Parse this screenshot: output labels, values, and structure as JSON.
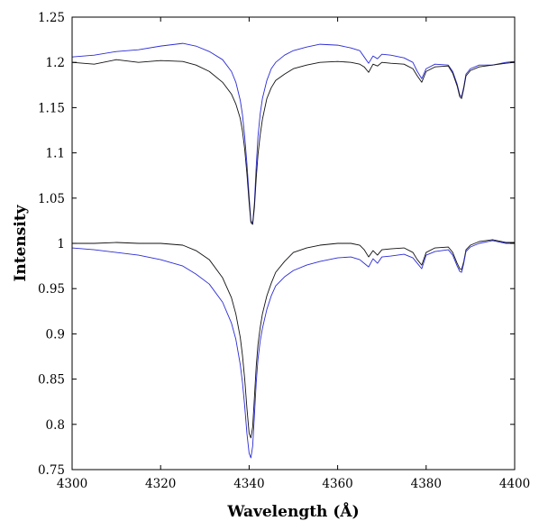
{
  "chart_data": {
    "type": "line",
    "title": "",
    "xlabel": "Wavelength (Å)",
    "ylabel": "Intensity",
    "xlim": [
      4300,
      4400
    ],
    "ylim": [
      0.75,
      1.25
    ],
    "x_ticks": [
      4300,
      4320,
      4340,
      4360,
      4380,
      4400
    ],
    "x_tick_labels": [
      "4300",
      "4320",
      "4340",
      "4360",
      "4380",
      "4400"
    ],
    "y_ticks": [
      0.75,
      0.8,
      0.85,
      0.9,
      0.95,
      1,
      1.05,
      1.1,
      1.15,
      1.2,
      1.25
    ],
    "y_tick_labels": [
      "0.75",
      "0.8",
      "0.85",
      "0.9",
      "0.95",
      "1",
      "1.05",
      "1.1",
      "1.15",
      "1.2",
      "1.25"
    ],
    "grid": false,
    "legend": "none",
    "series": [
      {
        "color": "#2b2bd6",
        "x": [
          4300,
          4305,
          4310,
          4315,
          4320,
          4325,
          4328,
          4331,
          4334,
          4336,
          4337,
          4338,
          4338.5,
          4339,
          4339.5,
          4340,
          4340.4,
          4340.8,
          4341.2,
          4341.6,
          4342,
          4342.5,
          4343,
          4344,
          4345,
          4346,
          4348,
          4350,
          4353,
          4356,
          4360,
          4363,
          4365,
          4366,
          4367,
          4368,
          4369,
          4370,
          4372,
          4375,
          4377,
          4378,
          4379,
          4380,
          4382,
          4385,
          4386,
          4387,
          4387.6,
          4388,
          4388.5,
          4389,
          4390,
          4392,
          4395,
          4398,
          4400
        ],
        "y": [
          1.206,
          1.208,
          1.212,
          1.214,
          1.218,
          1.221,
          1.218,
          1.212,
          1.203,
          1.19,
          1.178,
          1.158,
          1.142,
          1.118,
          1.088,
          1.052,
          1.025,
          1.022,
          1.045,
          1.085,
          1.118,
          1.143,
          1.16,
          1.18,
          1.193,
          1.2,
          1.208,
          1.213,
          1.217,
          1.22,
          1.219,
          1.216,
          1.213,
          1.206,
          1.199,
          1.207,
          1.204,
          1.209,
          1.208,
          1.205,
          1.2,
          1.19,
          1.182,
          1.193,
          1.198,
          1.197,
          1.19,
          1.176,
          1.164,
          1.162,
          1.173,
          1.187,
          1.193,
          1.197,
          1.197,
          1.2,
          1.201
        ]
      },
      {
        "color": "#111111",
        "x": [
          4300,
          4305,
          4310,
          4315,
          4320,
          4325,
          4328,
          4331,
          4334,
          4336,
          4337,
          4338,
          4338.5,
          4339,
          4339.5,
          4340,
          4340.4,
          4340.8,
          4341.2,
          4341.6,
          4342,
          4342.5,
          4343,
          4344,
          4345,
          4346,
          4348,
          4350,
          4353,
          4356,
          4360,
          4363,
          4365,
          4366,
          4367,
          4368,
          4369,
          4370,
          4372,
          4375,
          4377,
          4378,
          4379,
          4380,
          4382,
          4385,
          4386,
          4387,
          4387.6,
          4388,
          4388.5,
          4389,
          4390,
          4392,
          4395,
          4398,
          4400
        ],
        "y": [
          1.2,
          1.198,
          1.203,
          1.2,
          1.202,
          1.201,
          1.197,
          1.19,
          1.178,
          1.165,
          1.154,
          1.138,
          1.124,
          1.104,
          1.077,
          1.045,
          1.023,
          1.021,
          1.04,
          1.072,
          1.098,
          1.12,
          1.137,
          1.16,
          1.172,
          1.18,
          1.187,
          1.193,
          1.197,
          1.2,
          1.201,
          1.2,
          1.198,
          1.195,
          1.189,
          1.198,
          1.196,
          1.2,
          1.199,
          1.198,
          1.193,
          1.185,
          1.178,
          1.19,
          1.195,
          1.196,
          1.188,
          1.174,
          1.162,
          1.16,
          1.171,
          1.185,
          1.191,
          1.195,
          1.197,
          1.199,
          1.2
        ]
      },
      {
        "color": "#111111",
        "x": [
          4300,
          4305,
          4310,
          4315,
          4320,
          4325,
          4328,
          4331,
          4334,
          4336,
          4337,
          4338,
          4338.5,
          4339,
          4339.5,
          4340,
          4340.4,
          4340.8,
          4341.2,
          4341.6,
          4342,
          4342.5,
          4343,
          4344,
          4345,
          4346,
          4348,
          4350,
          4353,
          4356,
          4360,
          4363,
          4365,
          4366,
          4367,
          4368,
          4369,
          4370,
          4372,
          4375,
          4377,
          4378,
          4379,
          4380,
          4382,
          4385,
          4386,
          4387,
          4387.6,
          4388,
          4388.5,
          4389,
          4390,
          4392,
          4395,
          4398,
          4400
        ],
        "y": [
          1.0,
          1.0,
          1.001,
          1.0,
          1.0,
          0.998,
          0.992,
          0.982,
          0.962,
          0.94,
          0.922,
          0.896,
          0.876,
          0.85,
          0.818,
          0.79,
          0.785,
          0.797,
          0.83,
          0.864,
          0.888,
          0.907,
          0.922,
          0.942,
          0.956,
          0.968,
          0.98,
          0.99,
          0.995,
          0.998,
          1.0,
          1.0,
          0.998,
          0.993,
          0.985,
          0.992,
          0.987,
          0.993,
          0.994,
          0.995,
          0.99,
          0.982,
          0.976,
          0.99,
          0.995,
          0.996,
          0.99,
          0.978,
          0.972,
          0.971,
          0.98,
          0.993,
          0.998,
          1.002,
          1.004,
          1.001,
          1.001
        ]
      },
      {
        "color": "#2b2bd6",
        "x": [
          4300,
          4305,
          4310,
          4315,
          4320,
          4325,
          4328,
          4331,
          4334,
          4336,
          4337,
          4338,
          4338.5,
          4339,
          4339.5,
          4340,
          4340.4,
          4340.8,
          4341.2,
          4341.6,
          4342,
          4342.5,
          4343,
          4344,
          4345,
          4346,
          4348,
          4350,
          4353,
          4356,
          4360,
          4363,
          4365,
          4366,
          4367,
          4368,
          4369,
          4370,
          4372,
          4375,
          4377,
          4378,
          4379,
          4380,
          4382,
          4385,
          4386,
          4387,
          4387.6,
          4388,
          4388.5,
          4389,
          4390,
          4392,
          4395,
          4398,
          4400
        ],
        "y": [
          0.995,
          0.993,
          0.99,
          0.987,
          0.982,
          0.975,
          0.966,
          0.955,
          0.935,
          0.912,
          0.894,
          0.866,
          0.846,
          0.82,
          0.79,
          0.768,
          0.763,
          0.776,
          0.81,
          0.846,
          0.872,
          0.892,
          0.906,
          0.927,
          0.942,
          0.953,
          0.963,
          0.97,
          0.976,
          0.98,
          0.984,
          0.985,
          0.982,
          0.978,
          0.974,
          0.983,
          0.978,
          0.985,
          0.986,
          0.988,
          0.984,
          0.978,
          0.972,
          0.987,
          0.991,
          0.993,
          0.987,
          0.975,
          0.969,
          0.968,
          0.978,
          0.991,
          0.996,
          1.0,
          1.003,
          1.0,
          1.0
        ]
      }
    ]
  }
}
